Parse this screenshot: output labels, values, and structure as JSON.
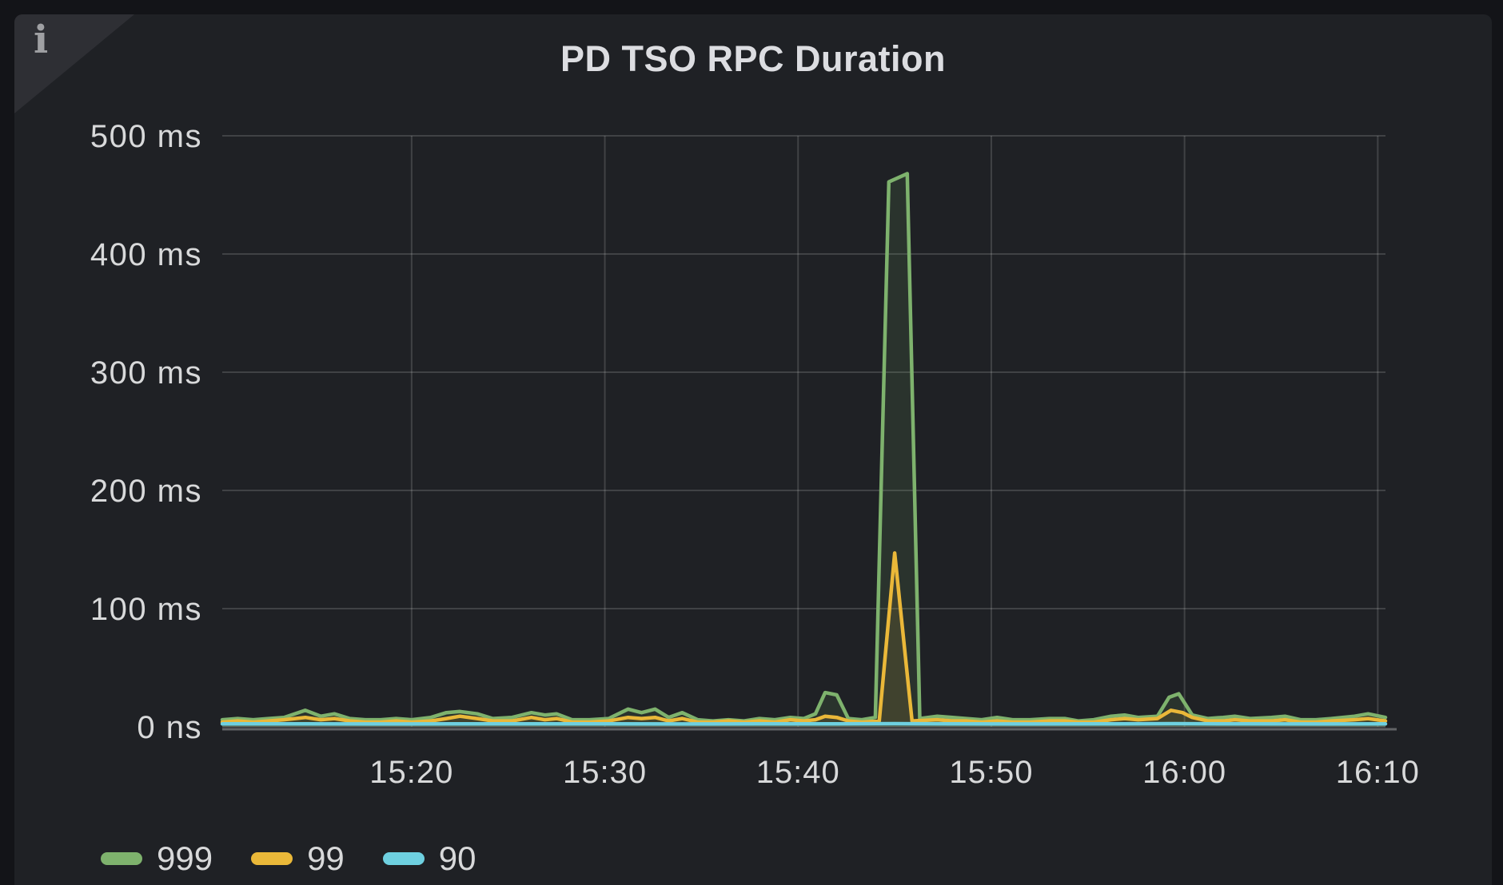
{
  "panel": {
    "title": "PD TSO RPC Duration",
    "info_icon": "i"
  },
  "colors": {
    "page_background": "#131418",
    "panel_background": "#1f2125",
    "grid": "rgba(255,255,255,0.15)",
    "tick_text": "#d8d9da",
    "title_text": "#dcdde1"
  },
  "chart_data": {
    "type": "line",
    "title": "PD TSO RPC Duration",
    "xlabel": "",
    "ylabel": "",
    "y_unit": "ms",
    "x_unit": "minutes after 15:00",
    "x_range": [
      10.2,
      70.4
    ],
    "y_range": [
      0,
      500
    ],
    "grid": true,
    "legend_position": "bottom-left",
    "fill_opacity": 0.12,
    "y_ticks": [
      {
        "value": 500,
        "label": "500 ms"
      },
      {
        "value": 400,
        "label": "400 ms"
      },
      {
        "value": 300,
        "label": "300 ms"
      },
      {
        "value": 200,
        "label": "200 ms"
      },
      {
        "value": 100,
        "label": "100 ms"
      },
      {
        "value": 0,
        "label": "0 ns"
      }
    ],
    "x_ticks": [
      {
        "value": 20,
        "label": "15:20"
      },
      {
        "value": 30,
        "label": "15:30"
      },
      {
        "value": 40,
        "label": "15:40"
      },
      {
        "value": 50,
        "label": "15:50"
      },
      {
        "value": 60,
        "label": "16:00"
      },
      {
        "value": 70,
        "label": "16:10"
      }
    ],
    "series": [
      {
        "name": "999",
        "color": "#7EB26D",
        "points": [
          [
            10.2,
            6
          ],
          [
            11,
            7
          ],
          [
            11.8,
            6
          ],
          [
            12.6,
            7
          ],
          [
            13.4,
            8
          ],
          [
            14.5,
            14
          ],
          [
            15.3,
            9
          ],
          [
            16,
            11
          ],
          [
            16.8,
            7
          ],
          [
            17.6,
            6
          ],
          [
            18.4,
            6
          ],
          [
            19.2,
            7
          ],
          [
            20,
            6
          ],
          [
            21,
            8
          ],
          [
            21.8,
            12
          ],
          [
            22.5,
            13
          ],
          [
            23.4,
            11
          ],
          [
            24.2,
            7
          ],
          [
            25.2,
            8
          ],
          [
            26.2,
            12
          ],
          [
            26.9,
            10
          ],
          [
            27.5,
            11
          ],
          [
            28.3,
            6
          ],
          [
            29.2,
            6
          ],
          [
            30.2,
            7
          ],
          [
            31.2,
            15
          ],
          [
            31.9,
            12
          ],
          [
            32.6,
            15
          ],
          [
            33.3,
            8
          ],
          [
            34,
            12
          ],
          [
            34.8,
            6
          ],
          [
            35.6,
            5
          ],
          [
            36.4,
            6
          ],
          [
            37.2,
            5
          ],
          [
            38,
            7
          ],
          [
            38.8,
            6
          ],
          [
            39.6,
            8
          ],
          [
            40.3,
            7
          ],
          [
            40.9,
            11
          ],
          [
            41.4,
            29
          ],
          [
            42,
            27
          ],
          [
            42.6,
            7
          ],
          [
            43.3,
            6
          ],
          [
            44,
            8
          ],
          [
            44.7,
            461
          ],
          [
            45.65,
            468
          ],
          [
            46.3,
            7
          ],
          [
            47.2,
            9
          ],
          [
            48,
            8
          ],
          [
            48.7,
            7
          ],
          [
            49.5,
            6
          ],
          [
            50.3,
            8
          ],
          [
            51.1,
            6
          ],
          [
            52,
            6
          ],
          [
            53,
            7
          ],
          [
            53.8,
            7
          ],
          [
            54.5,
            5
          ],
          [
            55.3,
            6
          ],
          [
            56.2,
            9
          ],
          [
            56.9,
            10
          ],
          [
            57.6,
            8
          ],
          [
            58.6,
            9
          ],
          [
            59.2,
            25
          ],
          [
            59.7,
            28
          ],
          [
            60.4,
            10
          ],
          [
            61.2,
            7
          ],
          [
            62,
            8
          ],
          [
            62.6,
            9
          ],
          [
            63.4,
            7
          ],
          [
            64.5,
            8
          ],
          [
            65.2,
            9
          ],
          [
            66,
            6
          ],
          [
            66.8,
            6
          ],
          [
            67.6,
            7
          ],
          [
            68.8,
            9
          ],
          [
            69.5,
            11
          ],
          [
            70.4,
            8
          ]
        ]
      },
      {
        "name": "99",
        "color": "#EAB839",
        "points": [
          [
            10.2,
            4
          ],
          [
            11,
            5
          ],
          [
            11.8,
            4
          ],
          [
            12.6,
            5
          ],
          [
            13.4,
            6
          ],
          [
            14.5,
            8
          ],
          [
            15.3,
            6
          ],
          [
            16,
            7
          ],
          [
            16.8,
            5
          ],
          [
            17.6,
            4
          ],
          [
            18.4,
            4
          ],
          [
            19.2,
            5
          ],
          [
            20,
            4
          ],
          [
            21,
            5
          ],
          [
            21.8,
            7
          ],
          [
            22.5,
            9
          ],
          [
            23.4,
            7
          ],
          [
            24.2,
            5
          ],
          [
            25.2,
            5
          ],
          [
            26.2,
            8
          ],
          [
            26.9,
            6
          ],
          [
            27.5,
            7
          ],
          [
            28.3,
            4
          ],
          [
            29.2,
            4
          ],
          [
            30.2,
            5
          ],
          [
            31.2,
            8
          ],
          [
            31.9,
            7
          ],
          [
            32.6,
            8
          ],
          [
            33.3,
            5
          ],
          [
            34,
            7
          ],
          [
            34.8,
            4
          ],
          [
            35.6,
            4
          ],
          [
            36.4,
            5
          ],
          [
            37.2,
            4
          ],
          [
            38,
            5
          ],
          [
            38.8,
            4
          ],
          [
            39.6,
            6
          ],
          [
            40.3,
            5
          ],
          [
            40.9,
            6
          ],
          [
            41.4,
            9
          ],
          [
            42,
            8
          ],
          [
            42.6,
            5
          ],
          [
            43.3,
            4
          ],
          [
            44.2,
            5
          ],
          [
            45,
            147
          ],
          [
            45.9,
            5
          ],
          [
            47.2,
            6
          ],
          [
            48,
            5
          ],
          [
            48.7,
            5
          ],
          [
            49.5,
            4
          ],
          [
            50.3,
            5
          ],
          [
            51.1,
            4
          ],
          [
            52,
            4
          ],
          [
            53,
            5
          ],
          [
            53.8,
            5
          ],
          [
            54.5,
            4
          ],
          [
            55.3,
            4
          ],
          [
            56.2,
            6
          ],
          [
            56.9,
            7
          ],
          [
            57.6,
            6
          ],
          [
            58.6,
            7
          ],
          [
            59.3,
            14
          ],
          [
            59.9,
            12
          ],
          [
            60.4,
            8
          ],
          [
            61.2,
            5
          ],
          [
            62,
            5
          ],
          [
            62.6,
            6
          ],
          [
            63.4,
            5
          ],
          [
            64.5,
            5
          ],
          [
            65.2,
            6
          ],
          [
            66,
            4
          ],
          [
            66.8,
            4
          ],
          [
            67.6,
            5
          ],
          [
            68.8,
            6
          ],
          [
            69.5,
            7
          ],
          [
            70.4,
            5
          ]
        ]
      },
      {
        "name": "90",
        "color": "#6ED0E0",
        "points": [
          [
            10.2,
            2.5
          ],
          [
            14,
            2.6
          ],
          [
            18,
            2.4
          ],
          [
            22,
            2.5
          ],
          [
            26,
            2.6
          ],
          [
            30,
            2.5
          ],
          [
            34,
            2.4
          ],
          [
            38,
            2.5
          ],
          [
            42,
            2.5
          ],
          [
            45,
            2.7
          ],
          [
            48,
            2.5
          ],
          [
            52,
            2.4
          ],
          [
            56,
            2.5
          ],
          [
            59.5,
            2.7
          ],
          [
            63,
            2.5
          ],
          [
            67,
            2.4
          ],
          [
            70.4,
            2.5
          ]
        ]
      }
    ]
  }
}
